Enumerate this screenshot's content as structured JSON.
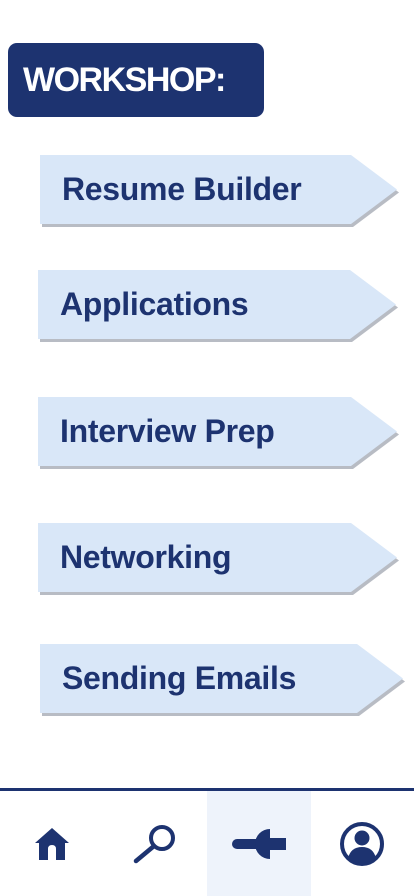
{
  "header": {
    "title": "WORKSHOP:"
  },
  "workshops": [
    {
      "label": "Resume Builder"
    },
    {
      "label": "Applications"
    },
    {
      "label": "Interview Prep"
    },
    {
      "label": "Networking"
    },
    {
      "label": "Sending Emails"
    }
  ],
  "bottom_nav": {
    "items": [
      {
        "icon": "home-icon",
        "active": false
      },
      {
        "icon": "search-icon",
        "active": false
      },
      {
        "icon": "wrench-icon",
        "active": true
      },
      {
        "icon": "user-icon",
        "active": false
      }
    ]
  },
  "colors": {
    "primary": "#1d3370",
    "item_bg": "#d9e7f8",
    "active_nav_bg": "#eef3fb"
  }
}
